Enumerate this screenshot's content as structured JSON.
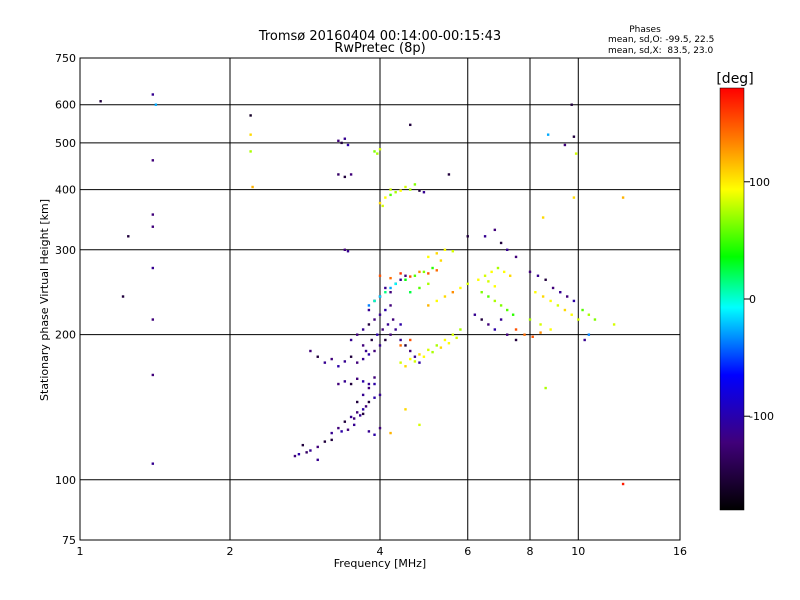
{
  "chart_data": {
    "type": "scatter",
    "title": "Tromsø 20160404 00:14:00-00:15:43",
    "subtitle": "RwPretec (8p)",
    "xlabel": "Frequency [MHz]",
    "ylabel": "Stationary phase Virtual Height [km]",
    "x_scale": "log",
    "y_scale": "log",
    "xlim": [
      1,
      16
    ],
    "ylim": [
      75,
      750
    ],
    "x_ticks": [
      1,
      2,
      4,
      6,
      8,
      10,
      16
    ],
    "y_ticks": [
      75,
      100,
      200,
      300,
      400,
      500,
      600,
      750
    ],
    "grid": true,
    "phase_box": {
      "title": "Phases",
      "line_o": "mean, sd,O: -99.5, 22.5",
      "line_x": "mean, sd,X:  83.5, 23.0"
    },
    "colorbar": {
      "label": "[deg]",
      "range": [
        -180,
        180
      ],
      "ticks": [
        100,
        0,
        -100
      ]
    },
    "series": [
      {
        "points": [
          [
            1.1,
            610,
            -150
          ],
          [
            1.4,
            630,
            -110
          ],
          [
            1.42,
            600,
            -20
          ],
          [
            1.4,
            460,
            -120
          ],
          [
            1.4,
            355,
            -120
          ],
          [
            1.4,
            335,
            -120
          ],
          [
            1.4,
            275,
            -110
          ],
          [
            1.4,
            215,
            -120
          ],
          [
            1.4,
            165,
            -120
          ],
          [
            1.4,
            108,
            -110
          ],
          [
            1.25,
            320,
            -150
          ],
          [
            1.22,
            240,
            -150
          ],
          [
            2.2,
            570,
            -160
          ],
          [
            2.2,
            520,
            110
          ],
          [
            2.2,
            480,
            80
          ],
          [
            2.22,
            405,
            120
          ],
          [
            3.3,
            505,
            -120
          ],
          [
            3.35,
            500,
            -150
          ],
          [
            3.4,
            510,
            -110
          ],
          [
            3.45,
            495,
            -100
          ],
          [
            3.3,
            430,
            -130
          ],
          [
            3.4,
            425,
            -150
          ],
          [
            3.5,
            430,
            -120
          ],
          [
            3.4,
            300,
            -120
          ],
          [
            3.45,
            298,
            -110
          ],
          [
            3.9,
            480,
            70
          ],
          [
            4.0,
            485,
            90
          ],
          [
            3.95,
            475,
            80
          ],
          [
            4.6,
            545,
            -150
          ],
          [
            4.2,
            400,
            90
          ],
          [
            4.3,
            395,
            80
          ],
          [
            4.4,
            398,
            100
          ],
          [
            4.5,
            405,
            90
          ],
          [
            4.6,
            400,
            80
          ],
          [
            4.7,
            410,
            70
          ],
          [
            4.8,
            398,
            -150
          ],
          [
            4.9,
            395,
            -110
          ],
          [
            4.1,
            385,
            100
          ],
          [
            4.2,
            390,
            60
          ],
          [
            4.0,
            375,
            110
          ],
          [
            4.05,
            370,
            90
          ],
          [
            5.5,
            430,
            -150
          ],
          [
            6.0,
            320,
            -150
          ],
          [
            2.8,
            118,
            -150
          ],
          [
            2.9,
            115,
            -110
          ],
          [
            3.0,
            117,
            -120
          ],
          [
            3.1,
            120,
            -150
          ],
          [
            3.2,
            125,
            -110
          ],
          [
            3.3,
            128,
            -120
          ],
          [
            3.4,
            132,
            -150
          ],
          [
            3.5,
            135,
            -110
          ],
          [
            3.6,
            138,
            -120
          ],
          [
            3.7,
            140,
            -100
          ],
          [
            3.8,
            145,
            -150
          ],
          [
            3.55,
            130,
            -110
          ],
          [
            3.45,
            127,
            -120
          ],
          [
            3.65,
            136,
            -110
          ],
          [
            3.75,
            142,
            -120
          ],
          [
            3.9,
            148,
            -100
          ],
          [
            2.7,
            112,
            -120
          ],
          [
            2.75,
            113,
            -100
          ],
          [
            2.85,
            114,
            -130
          ],
          [
            3.0,
            110,
            -110
          ],
          [
            3.2,
            121,
            -150
          ],
          [
            3.35,
            126,
            -100
          ],
          [
            3.55,
            134,
            -120
          ],
          [
            3.7,
            137,
            -150
          ],
          [
            3.8,
            126,
            -110
          ],
          [
            3.9,
            124,
            -100
          ],
          [
            4.0,
            128,
            -120
          ],
          [
            3.6,
            145,
            -150
          ],
          [
            3.7,
            150,
            -110
          ],
          [
            3.8,
            155,
            -120
          ],
          [
            3.9,
            158,
            -100
          ],
          [
            4.0,
            150,
            -110
          ],
          [
            2.9,
            185,
            -120
          ],
          [
            3.0,
            180,
            -150
          ],
          [
            3.1,
            175,
            -110
          ],
          [
            3.2,
            178,
            -120
          ],
          [
            3.3,
            172,
            -100
          ],
          [
            3.4,
            176,
            -110
          ],
          [
            3.5,
            180,
            -150
          ],
          [
            3.6,
            175,
            -120
          ],
          [
            3.7,
            178,
            -110
          ],
          [
            3.8,
            182,
            -100
          ],
          [
            3.9,
            185,
            -120
          ],
          [
            4.0,
            190,
            -110
          ],
          [
            4.1,
            195,
            -150
          ],
          [
            4.2,
            200,
            -120
          ],
          [
            4.3,
            205,
            -110
          ],
          [
            4.4,
            210,
            -100
          ],
          [
            3.3,
            158,
            -120
          ],
          [
            3.4,
            160,
            -110
          ],
          [
            3.5,
            158,
            -150
          ],
          [
            3.6,
            162,
            -120
          ],
          [
            3.7,
            160,
            -100
          ],
          [
            3.8,
            158,
            -110
          ],
          [
            3.9,
            163,
            -120
          ],
          [
            3.5,
            195,
            -110
          ],
          [
            3.6,
            200,
            -120
          ],
          [
            3.7,
            205,
            -110
          ],
          [
            3.8,
            210,
            -150
          ],
          [
            3.9,
            215,
            -120
          ],
          [
            4.0,
            220,
            -110
          ],
          [
            4.1,
            225,
            -100
          ],
          [
            4.2,
            230,
            -120
          ],
          [
            3.8,
            225,
            -110
          ],
          [
            3.9,
            235,
            -120
          ],
          [
            4.0,
            240,
            -100
          ],
          [
            4.1,
            250,
            -110
          ],
          [
            4.2,
            245,
            -120
          ],
          [
            4.3,
            255,
            -150
          ],
          [
            4.4,
            260,
            -110
          ],
          [
            4.5,
            265,
            -120
          ],
          [
            3.7,
            190,
            -120
          ],
          [
            3.75,
            185,
            -110
          ],
          [
            3.85,
            195,
            -150
          ],
          [
            3.95,
            200,
            -100
          ],
          [
            4.05,
            205,
            -120
          ],
          [
            4.15,
            210,
            -110
          ],
          [
            4.25,
            215,
            -120
          ],
          [
            4.4,
            195,
            -110
          ],
          [
            4.5,
            190,
            -150
          ],
          [
            4.6,
            185,
            -120
          ],
          [
            4.7,
            180,
            -110
          ],
          [
            4.8,
            175,
            -100
          ],
          [
            4.2,
            250,
            -20
          ],
          [
            4.3,
            255,
            0
          ],
          [
            4.5,
            260,
            40
          ],
          [
            4.7,
            265,
            60
          ],
          [
            4.9,
            270,
            70
          ],
          [
            5.1,
            275,
            50
          ],
          [
            4.0,
            240,
            -10
          ],
          [
            4.1,
            245,
            20
          ],
          [
            3.8,
            230,
            -30
          ],
          [
            3.9,
            235,
            10
          ],
          [
            4.6,
            245,
            30
          ],
          [
            4.8,
            250,
            60
          ],
          [
            5.0,
            255,
            80
          ],
          [
            4.0,
            265,
            150
          ],
          [
            4.2,
            262,
            140
          ],
          [
            4.4,
            268,
            160
          ],
          [
            4.6,
            264,
            150
          ],
          [
            4.8,
            270,
            130
          ],
          [
            5.0,
            268,
            150
          ],
          [
            5.2,
            272,
            140
          ],
          [
            4.4,
            175,
            90
          ],
          [
            4.6,
            178,
            100
          ],
          [
            4.8,
            182,
            110
          ],
          [
            5.0,
            186,
            90
          ],
          [
            5.2,
            190,
            80
          ],
          [
            5.4,
            195,
            100
          ],
          [
            5.6,
            200,
            90
          ],
          [
            5.8,
            205,
            80
          ],
          [
            4.5,
            172,
            110
          ],
          [
            4.7,
            176,
            90
          ],
          [
            4.9,
            180,
            100
          ],
          [
            5.1,
            184,
            80
          ],
          [
            5.3,
            188,
            110
          ],
          [
            5.5,
            192,
            100
          ],
          [
            5.7,
            197,
            90
          ],
          [
            5.0,
            230,
            120
          ],
          [
            5.2,
            235,
            100
          ],
          [
            5.4,
            240,
            110
          ],
          [
            5.6,
            245,
            130
          ],
          [
            5.8,
            250,
            100
          ],
          [
            6.0,
            255,
            90
          ],
          [
            5.0,
            290,
            100
          ],
          [
            5.2,
            295,
            110
          ],
          [
            5.4,
            300,
            100
          ],
          [
            5.6,
            298,
            90
          ],
          [
            5.3,
            285,
            110
          ],
          [
            6.3,
            260,
            100
          ],
          [
            6.5,
            265,
            90
          ],
          [
            6.7,
            270,
            100
          ],
          [
            6.9,
            275,
            80
          ],
          [
            7.1,
            270,
            100
          ],
          [
            7.3,
            265,
            110
          ],
          [
            6.6,
            258,
            90
          ],
          [
            6.8,
            252,
            100
          ],
          [
            6.4,
            245,
            70
          ],
          [
            6.6,
            240,
            60
          ],
          [
            6.8,
            235,
            80
          ],
          [
            7.0,
            230,
            70
          ],
          [
            7.2,
            225,
            60
          ],
          [
            7.4,
            220,
            50
          ],
          [
            6.5,
            320,
            -110
          ],
          [
            6.8,
            330,
            -120
          ],
          [
            7.0,
            310,
            -150
          ],
          [
            7.2,
            300,
            -110
          ],
          [
            7.5,
            290,
            -120
          ],
          [
            6.2,
            220,
            -110
          ],
          [
            6.4,
            215,
            -150
          ],
          [
            6.6,
            210,
            -120
          ],
          [
            6.8,
            205,
            -100
          ],
          [
            7.0,
            215,
            -110
          ],
          [
            7.2,
            200,
            -120
          ],
          [
            7.5,
            195,
            -150
          ],
          [
            8.0,
            270,
            -120
          ],
          [
            8.3,
            265,
            -110
          ],
          [
            8.6,
            260,
            -150
          ],
          [
            8.9,
            250,
            -120
          ],
          [
            9.2,
            245,
            -110
          ],
          [
            9.5,
            240,
            -120
          ],
          [
            9.8,
            235,
            -100
          ],
          [
            8.2,
            245,
            100
          ],
          [
            8.5,
            240,
            110
          ],
          [
            8.8,
            235,
            100
          ],
          [
            9.1,
            230,
            90
          ],
          [
            9.4,
            225,
            110
          ],
          [
            9.7,
            220,
            100
          ],
          [
            10.0,
            215,
            90
          ],
          [
            10.2,
            225,
            60
          ],
          [
            10.5,
            220,
            80
          ],
          [
            10.8,
            215,
            70
          ],
          [
            8.0,
            215,
            80
          ],
          [
            8.4,
            210,
            90
          ],
          [
            8.8,
            205,
            100
          ],
          [
            7.8,
            200,
            140
          ],
          [
            8.1,
            198,
            150
          ],
          [
            8.4,
            202,
            130
          ],
          [
            7.5,
            205,
            150
          ],
          [
            8.5,
            350,
            110
          ],
          [
            8.7,
            520,
            -20
          ],
          [
            9.4,
            495,
            -120
          ],
          [
            9.7,
            600,
            -150
          ],
          [
            9.8,
            515,
            -150
          ],
          [
            9.9,
            475,
            90
          ],
          [
            9.8,
            385,
            110
          ],
          [
            12.3,
            385,
            120
          ],
          [
            12.3,
            98,
            170
          ],
          [
            10.5,
            200,
            -30
          ],
          [
            10.3,
            195,
            -110
          ],
          [
            8.6,
            155,
            80
          ],
          [
            11.8,
            210,
            90
          ],
          [
            4.5,
            140,
            110
          ],
          [
            4.2,
            125,
            120
          ],
          [
            4.8,
            130,
            90
          ],
          [
            4.4,
            190,
            140
          ],
          [
            4.6,
            195,
            150
          ]
        ]
      }
    ]
  }
}
